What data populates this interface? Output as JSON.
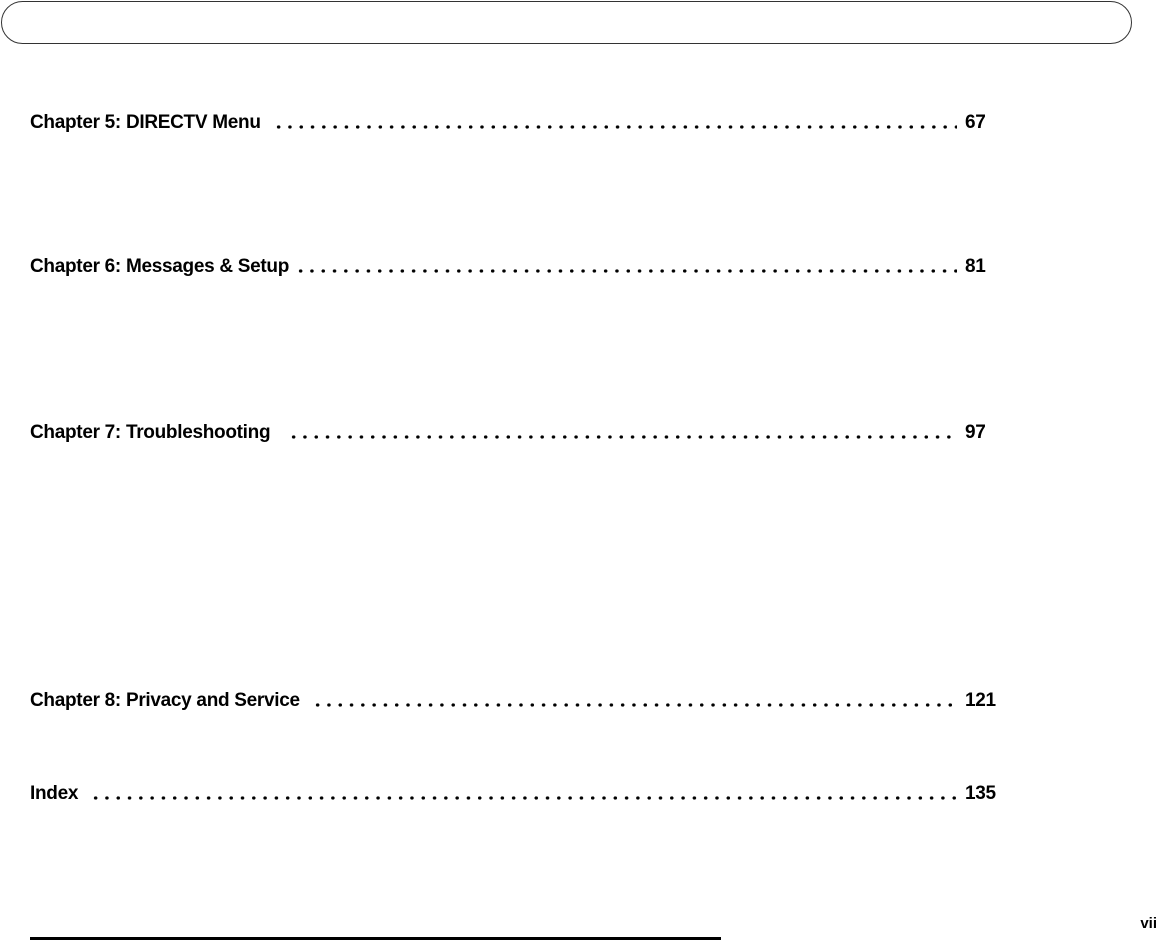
{
  "toc": [
    {
      "title": "Chapter 5: DIRECTV Menu",
      "page": "67"
    },
    {
      "title": "Chapter 6: Messages & Setup",
      "page": "81"
    },
    {
      "title": "Chapter 7: Troubleshooting",
      "page": "97"
    },
    {
      "title": "Chapter 8: Privacy and Service",
      "page": "121"
    },
    {
      "title": "Index",
      "page": "135"
    }
  ],
  "footer": {
    "page_number": "vii"
  }
}
